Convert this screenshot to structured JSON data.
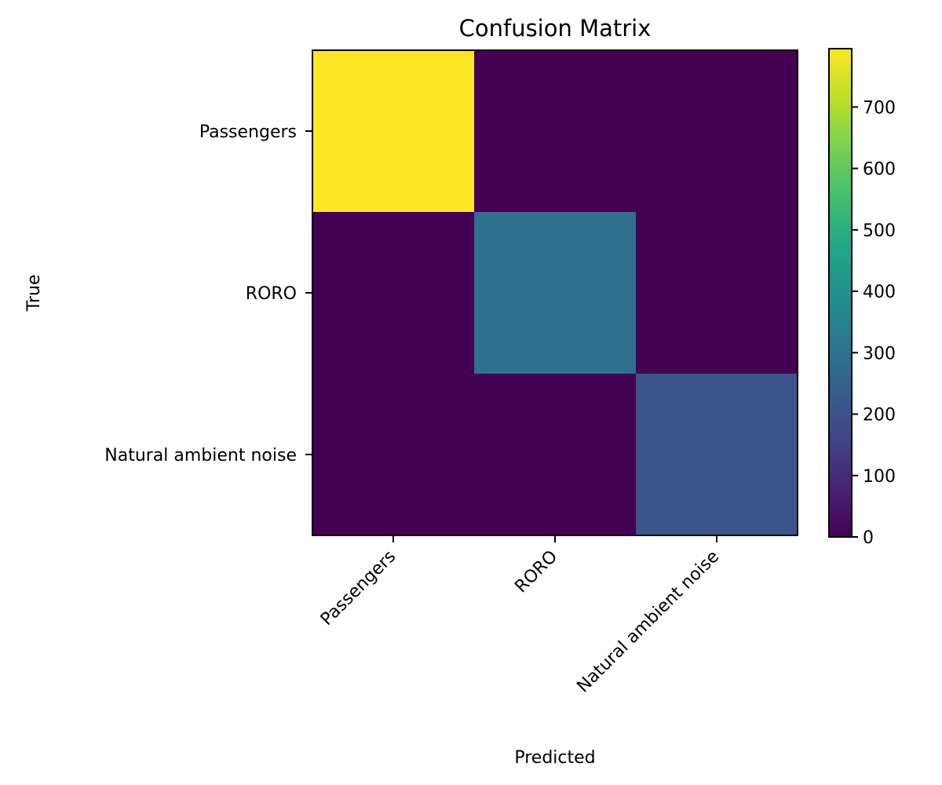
{
  "chart_data": {
    "type": "heatmap",
    "title": "Confusion Matrix",
    "xlabel": "Predicted",
    "ylabel": "True",
    "x_categories": [
      "Passengers",
      "RORO",
      "Natural ambient noise"
    ],
    "y_categories": [
      "Passengers",
      "RORO",
      "Natural ambient noise"
    ],
    "values": [
      [
        795,
        0,
        0
      ],
      [
        0,
        292,
        0
      ],
      [
        0,
        0,
        207
      ]
    ],
    "colormap": "viridis",
    "colorbar": {
      "range": [
        0,
        795
      ],
      "ticks": [
        0,
        100,
        200,
        300,
        400,
        500,
        600,
        700
      ],
      "tick_labels": [
        "0",
        "100",
        "200",
        "300",
        "400",
        "500",
        "600",
        "700"
      ]
    },
    "grid": false
  }
}
